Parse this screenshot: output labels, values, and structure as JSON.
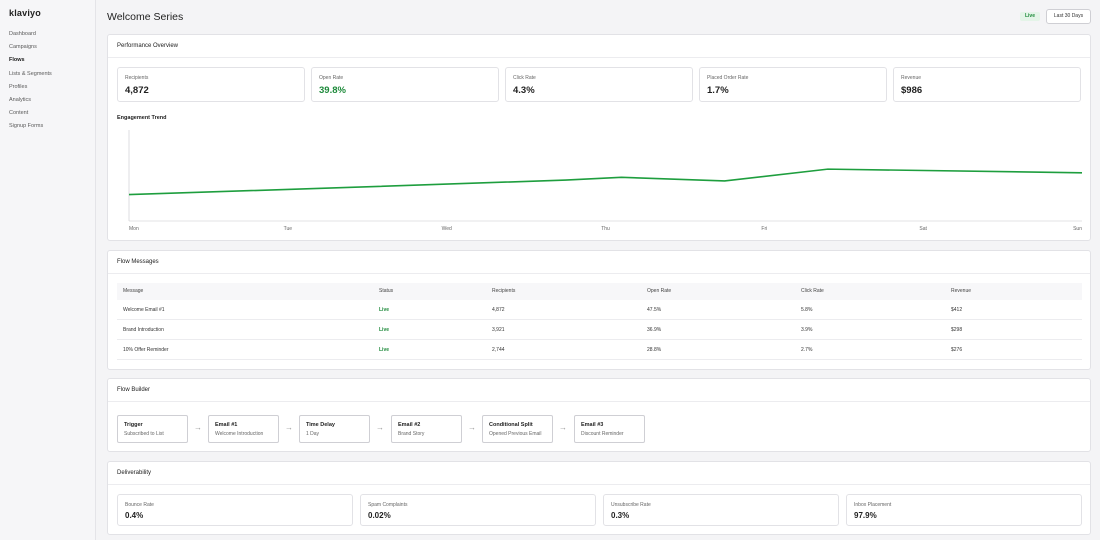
{
  "app": {
    "logo": "klaviyo"
  },
  "sidebar": {
    "items": [
      {
        "label": "Dashboard",
        "active": false
      },
      {
        "label": "Campaigns",
        "active": false
      },
      {
        "label": "Flows",
        "active": true
      },
      {
        "label": "Lists & Segments",
        "active": false
      },
      {
        "label": "Profiles",
        "active": false
      },
      {
        "label": "Analytics",
        "active": false
      },
      {
        "label": "Content",
        "active": false
      },
      {
        "label": "Signup Forms",
        "active": false
      }
    ]
  },
  "header": {
    "title": "Welcome Series",
    "status_badge": "Live",
    "date_range": "Last 30 Days"
  },
  "performance": {
    "title": "Performance Overview",
    "metrics": [
      {
        "label": "Recipients",
        "value": "4,872"
      },
      {
        "label": "Open Rate",
        "value": "39.8%"
      },
      {
        "label": "Click Rate",
        "value": "4.3%"
      },
      {
        "label": "Placed Order Rate",
        "value": "1.7%"
      },
      {
        "label": "Revenue",
        "value": "$986"
      }
    ],
    "trend_title": "Engagement Trend"
  },
  "chart_data": {
    "type": "line",
    "title": "Engagement Trend",
    "categories": [
      "Mon",
      "Tue",
      "Wed",
      "Thu",
      "Fri",
      "Sat",
      "Sun"
    ],
    "x": [
      0,
      1.4,
      2.75,
      3.1,
      3.75,
      4.4,
      6
    ],
    "series": [
      {
        "values": [
          0.29,
          0.37,
          0.45,
          0.48,
          0.44,
          0.57,
          0.53
        ]
      }
    ],
    "ylim": [
      0,
      1
    ],
    "grid": false,
    "color": "#1e9e3e"
  },
  "flow_messages": {
    "title": "Flow Messages",
    "columns": [
      "Message",
      "Status",
      "Recipients",
      "Open Rate",
      "Click Rate",
      "Revenue"
    ],
    "rows": [
      [
        "Welcome Email #1",
        "Live",
        "4,872",
        "47.5%",
        "5.8%",
        "$412"
      ],
      [
        "Brand Introduction",
        "Live",
        "3,921",
        "36.9%",
        "3.9%",
        "$298"
      ],
      [
        "10% Offer Reminder",
        "Live",
        "2,744",
        "28.8%",
        "2.7%",
        "$276"
      ]
    ]
  },
  "flow_builder": {
    "title": "Flow Builder",
    "arrow": "→",
    "nodes": [
      {
        "title": "Trigger",
        "subtitle": "Subscribed to List"
      },
      {
        "title": "Email #1",
        "subtitle": "Welcome Introduction"
      },
      {
        "title": "Time Delay",
        "subtitle": "1 Day"
      },
      {
        "title": "Email #2",
        "subtitle": "Brand Story"
      },
      {
        "title": "Conditional Split",
        "subtitle": "Opened Previous Email"
      },
      {
        "title": "Email #3",
        "subtitle": "Discount Reminder"
      }
    ]
  },
  "deliverability": {
    "title": "Deliverability",
    "metrics": [
      {
        "label": "Bounce Rate",
        "value": "0.4%"
      },
      {
        "label": "Spam Complaints",
        "value": "0.02%"
      },
      {
        "label": "Unsubscribe Rate",
        "value": "0.3%"
      },
      {
        "label": "Inbox Placement",
        "value": "97.9%"
      }
    ]
  }
}
